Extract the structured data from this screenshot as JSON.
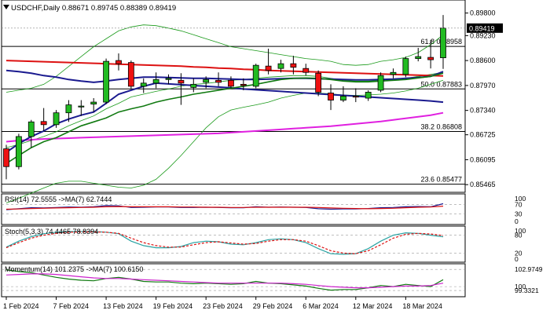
{
  "chart_data": [
    {
      "type": "candlestick",
      "header": {
        "symbol": "USDCHF,Daily",
        "values": "0.88671 0.89745 0.88389 0.89419"
      },
      "y_ticks": [
        "0.89800",
        "0.89230",
        "0.88600",
        "0.87970",
        "0.87340",
        "0.86725",
        "0.86095",
        "0.85465"
      ],
      "ylim": [
        0.8535,
        0.9005
      ],
      "current_price": "0.89419",
      "x_ticks": [
        {
          "label": "1 Feb 2024",
          "index": 0
        },
        {
          "label": "7 Feb 2024",
          "index": 4
        },
        {
          "label": "13 Feb 2024",
          "index": 8
        },
        {
          "label": "19 Feb 2024",
          "index": 12
        },
        {
          "label": "23 Feb 2024",
          "index": 16
        },
        {
          "label": "29 Feb 2024",
          "index": 20
        },
        {
          "label": "6 Mar 2024",
          "index": 24
        },
        {
          "label": "12 Mar 2024",
          "index": 28
        },
        {
          "label": "18 Mar 2024",
          "index": 32
        }
      ],
      "fib_levels": [
        {
          "label": "61.8 0.88958",
          "value": 0.88958
        },
        {
          "label": "50.0 0.87883",
          "value": 0.87883
        },
        {
          "label": "38.2 0.86808",
          "value": 0.86808
        },
        {
          "label": "23.6 0.85477",
          "value": 0.85477
        }
      ],
      "candles": [
        [
          0.8637,
          0.8647,
          0.856,
          0.8592
        ],
        [
          0.8592,
          0.8675,
          0.8585,
          0.8668
        ],
        [
          0.8668,
          0.871,
          0.864,
          0.8705
        ],
        [
          0.8706,
          0.874,
          0.8682,
          0.8698
        ],
        [
          0.8698,
          0.8735,
          0.869,
          0.8728
        ],
        [
          0.8728,
          0.876,
          0.8705,
          0.8748
        ],
        [
          0.8744,
          0.876,
          0.872,
          0.8745
        ],
        [
          0.875,
          0.8765,
          0.873,
          0.8755
        ],
        [
          0.8755,
          0.8865,
          0.875,
          0.8858
        ],
        [
          0.886,
          0.8878,
          0.8835,
          0.8852
        ],
        [
          0.8855,
          0.886,
          0.8788,
          0.8795
        ],
        [
          0.8795,
          0.8815,
          0.8778,
          0.8803
        ],
        [
          0.8803,
          0.883,
          0.879,
          0.8812
        ],
        [
          0.8812,
          0.8825,
          0.88,
          0.8815
        ],
        [
          0.881,
          0.8828,
          0.8748,
          0.8803
        ],
        [
          0.8792,
          0.8815,
          0.878,
          0.88
        ],
        [
          0.8805,
          0.882,
          0.879,
          0.8812
        ],
        [
          0.881,
          0.883,
          0.8795,
          0.8805
        ],
        [
          0.881,
          0.882,
          0.879,
          0.8795
        ],
        [
          0.88,
          0.8815,
          0.8785,
          0.8797
        ],
        [
          0.8795,
          0.8852,
          0.879,
          0.8848
        ],
        [
          0.8846,
          0.889,
          0.8825,
          0.8835
        ],
        [
          0.884,
          0.8862,
          0.883,
          0.8852
        ],
        [
          0.8852,
          0.8872,
          0.8825,
          0.8843
        ],
        [
          0.884,
          0.8852,
          0.8822,
          0.883
        ],
        [
          0.8828,
          0.8835,
          0.877,
          0.878
        ],
        [
          0.8778,
          0.88,
          0.8735,
          0.876
        ],
        [
          0.876,
          0.8795,
          0.8755,
          0.877
        ],
        [
          0.877,
          0.879,
          0.8755,
          0.8768
        ],
        [
          0.8765,
          0.8785,
          0.8758,
          0.878
        ],
        [
          0.8785,
          0.883,
          0.878,
          0.8822
        ],
        [
          0.8825,
          0.884,
          0.8815,
          0.883
        ],
        [
          0.8825,
          0.887,
          0.8818,
          0.8865
        ],
        [
          0.8865,
          0.8892,
          0.8858,
          0.887
        ],
        [
          0.8868,
          0.8912,
          0.884,
          0.8862
        ],
        [
          0.8867,
          0.8975,
          0.8839,
          0.8942
        ]
      ],
      "overlays": [
        {
          "name": "bb_upper",
          "color": "#1a9a1a",
          "values": [
            0.878,
            0.8785,
            0.879,
            0.88,
            0.882,
            0.8845,
            0.887,
            0.8895,
            0.8915,
            0.8935,
            0.8945,
            0.895,
            0.8948,
            0.8942,
            0.8935,
            0.8925,
            0.8915,
            0.8905,
            0.8895,
            0.889,
            0.8885,
            0.888,
            0.8875,
            0.887,
            0.8865,
            0.8862,
            0.8858,
            0.885,
            0.8848,
            0.885,
            0.8858,
            0.8862,
            0.8868,
            0.888,
            0.89,
            0.8925
          ]
        },
        {
          "name": "bb_middle",
          "color": "#1a9a1a",
          "values": [
            0.864,
            0.8648,
            0.8658,
            0.8668,
            0.868,
            0.8695,
            0.8708,
            0.872,
            0.8738,
            0.8752,
            0.8768,
            0.8775,
            0.8782,
            0.8788,
            0.8795,
            0.88,
            0.8802,
            0.8806,
            0.881,
            0.8812,
            0.8815,
            0.8818,
            0.882,
            0.8822,
            0.8822,
            0.882,
            0.8815,
            0.881,
            0.8808,
            0.8808,
            0.881,
            0.8812,
            0.8815,
            0.882,
            0.8825,
            0.883
          ]
        },
        {
          "name": "bb_lower",
          "color": "#1a9a1a",
          "values": [
            0.85,
            0.8512,
            0.8525,
            0.8538,
            0.855,
            0.8555,
            0.8555,
            0.855,
            0.8545,
            0.854,
            0.8538,
            0.8545,
            0.856,
            0.8588,
            0.862,
            0.8655,
            0.869,
            0.8718,
            0.8735,
            0.8742,
            0.8748,
            0.8755,
            0.8765,
            0.8772,
            0.8778,
            0.8778,
            0.8776,
            0.8773,
            0.8772,
            0.8773,
            0.8775,
            0.8778,
            0.8783,
            0.879,
            0.88,
            0.881
          ]
        },
        {
          "name": "ma_red",
          "color": "#dd1111",
          "values": [
            0.886,
            0.8859,
            0.8858,
            0.8857,
            0.8856,
            0.8855,
            0.8854,
            0.8853,
            0.8852,
            0.8851,
            0.885,
            0.8849,
            0.8848,
            0.8847,
            0.8846,
            0.8844,
            0.8843,
            0.8841,
            0.884,
            0.8838,
            0.8837,
            0.8835,
            0.8834,
            0.8833,
            0.8832,
            0.8831,
            0.883,
            0.8829,
            0.8828,
            0.8827,
            0.8826,
            0.8825,
            0.8824,
            0.8823,
            0.8822,
            0.8821
          ]
        },
        {
          "name": "ma_navy_upper",
          "color": "#1a1a8f",
          "values": [
            0.8835,
            0.8832,
            0.8828,
            0.8822,
            0.8818,
            0.8812,
            0.8808,
            0.8805,
            0.8808,
            0.8812,
            0.8815,
            0.8818,
            0.8818,
            0.8817,
            0.8816,
            0.8815,
            0.8815,
            0.8814,
            0.8813,
            0.8812,
            0.8812,
            0.8813,
            0.8814,
            0.8815,
            0.8815,
            0.8814,
            0.8813,
            0.8812,
            0.8811,
            0.8811,
            0.8812,
            0.8813,
            0.8815,
            0.8817,
            0.882,
            0.8832
          ]
        },
        {
          "name": "ma_navy_lower",
          "color": "#1a1a8f",
          "values": [
            0.8628,
            0.865,
            0.8668,
            0.8682,
            0.87,
            0.8712,
            0.8722,
            0.873,
            0.8752,
            0.8775,
            0.8785,
            0.8795,
            0.8803,
            0.8801,
            0.8799,
            0.8797,
            0.8795,
            0.8793,
            0.8791,
            0.8788,
            0.8786,
            0.8784,
            0.8782,
            0.878,
            0.8778,
            0.8776,
            0.8774,
            0.8772,
            0.877,
            0.8768,
            0.8766,
            0.8764,
            0.8762,
            0.876,
            0.8758,
            0.8755
          ]
        },
        {
          "name": "ma_green",
          "color": "#117a11",
          "values": [
            0.86,
            0.862,
            0.864,
            0.8655,
            0.8665,
            0.868,
            0.8695,
            0.8705,
            0.8715,
            0.873,
            0.8738,
            0.8745,
            0.8755,
            0.8762,
            0.8768,
            0.8775,
            0.878,
            0.8785,
            0.879,
            0.8795,
            0.88,
            0.8806,
            0.8812,
            0.8815,
            0.8816,
            0.8815,
            0.8812,
            0.8808,
            0.8806,
            0.8806,
            0.8808,
            0.881,
            0.8812,
            0.8816,
            0.882,
            0.8828
          ]
        },
        {
          "name": "ma_magenta",
          "color": "#e020e0",
          "values": [
            0.8655,
            0.8658,
            0.866,
            0.8662,
            0.8663,
            0.8664,
            0.8665,
            0.8666,
            0.8667,
            0.8668,
            0.8669,
            0.867,
            0.8671,
            0.8672,
            0.8673,
            0.8674,
            0.8675,
            0.8676,
            0.8678,
            0.868,
            0.8682,
            0.8684,
            0.8686,
            0.8688,
            0.869,
            0.8692,
            0.8694,
            0.8697,
            0.87,
            0.8703,
            0.8706,
            0.871,
            0.8714,
            0.8718,
            0.8722,
            0.8728
          ]
        }
      ]
    },
    {
      "type": "line",
      "label": "RSI(14) 72.5555  ->MA(7) 62.7444",
      "y_ticks": [
        "100",
        "70",
        "30",
        "0"
      ],
      "ylim": [
        0,
        100
      ],
      "series": [
        {
          "color": "#1a1a8f",
          "values": [
            48,
            52,
            56,
            55,
            57,
            59,
            58,
            60,
            65,
            64,
            57,
            58,
            59,
            59,
            57,
            57,
            58,
            57,
            56,
            56,
            60,
            58,
            59,
            58,
            57,
            52,
            50,
            51,
            51,
            53,
            56,
            57,
            60,
            61,
            60,
            72.6
          ]
        },
        {
          "color": "#dd1111",
          "values": [
            50,
            51,
            53,
            54,
            55,
            56,
            57,
            58,
            60,
            61,
            60,
            60,
            60,
            60,
            59,
            59,
            58,
            58,
            57,
            57,
            58,
            58,
            58,
            58,
            58,
            57,
            55,
            54,
            53,
            52,
            53,
            54,
            56,
            58,
            59,
            62.7
          ]
        }
      ]
    },
    {
      "type": "line",
      "label": "Stoch(5,3,3) 74.4465 78.8394",
      "y_ticks": [
        "100",
        "80",
        "20",
        "0"
      ],
      "ylim": [
        0,
        100
      ],
      "series": [
        {
          "color": "#2aa3a3",
          "values": [
            40,
            60,
            75,
            85,
            90,
            92,
            92,
            92,
            90,
            85,
            60,
            45,
            38,
            38,
            42,
            55,
            60,
            58,
            50,
            48,
            55,
            65,
            68,
            65,
            55,
            35,
            18,
            16,
            18,
            35,
            60,
            80,
            88,
            86,
            80,
            74.4
          ]
        },
        {
          "color": "#dd1111",
          "values": [
            38,
            55,
            70,
            80,
            86,
            90,
            91,
            91,
            90,
            86,
            70,
            55,
            45,
            40,
            40,
            48,
            55,
            58,
            54,
            50,
            52,
            60,
            65,
            65,
            60,
            45,
            28,
            20,
            18,
            28,
            48,
            70,
            83,
            86,
            84,
            78.8
          ]
        }
      ]
    },
    {
      "type": "line",
      "label": "Momentum(14) 101.2375  ->MA(7) 100.6150",
      "y_ticks": [
        "102.9749",
        "100",
        "99.3321"
      ],
      "ylim": [
        98.8,
        103.4
      ],
      "series": [
        {
          "color": "#117a11",
          "values": [
            102.9,
            102.6,
            102.4,
            102.0,
            101.6,
            101.3,
            101.1,
            101.0,
            101.4,
            101.6,
            101.3,
            100.9,
            100.8,
            100.8,
            100.6,
            100.5,
            100.6,
            100.5,
            100.4,
            100.5,
            100.9,
            100.6,
            100.5,
            100.3,
            100.1,
            99.7,
            99.4,
            99.5,
            99.5,
            99.8,
            100.2,
            100.0,
            100.4,
            100.2,
            100.0,
            101.2
          ]
        },
        {
          "color": "#cc22cc",
          "values": [
            102.0,
            102.1,
            102.2,
            102.2,
            102.1,
            101.9,
            101.7,
            101.5,
            101.4,
            101.4,
            101.3,
            101.2,
            101.1,
            101.0,
            100.9,
            100.8,
            100.7,
            100.6,
            100.6,
            100.6,
            100.6,
            100.6,
            100.6,
            100.5,
            100.4,
            100.2,
            100.0,
            99.9,
            99.8,
            99.8,
            99.9,
            100.0,
            100.1,
            100.1,
            100.2,
            100.6
          ]
        }
      ]
    }
  ]
}
